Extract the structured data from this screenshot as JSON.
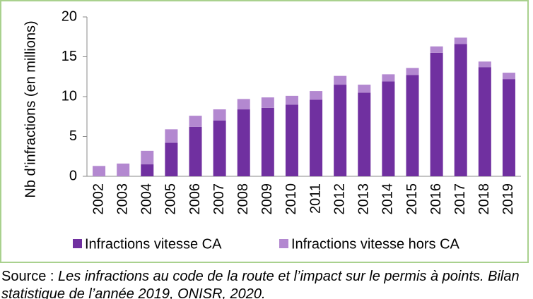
{
  "chart_data": {
    "type": "stacked_bar",
    "y_axis_label": "Nb d’infractions (en millions)",
    "categories": [
      "2002",
      "2003",
      "2004",
      "2005",
      "2006",
      "2007",
      "2008",
      "2009",
      "2010",
      "2011",
      "2012",
      "2013",
      "2014",
      "2015",
      "2016",
      "2017",
      "2018",
      "2019"
    ],
    "series": [
      {
        "name": "Infractions vitesse CA",
        "color": "#7030a0",
        "values": [
          0,
          0,
          1.5,
          4.2,
          6.2,
          7.0,
          8.4,
          8.6,
          9.0,
          9.6,
          11.5,
          10.5,
          11.9,
          12.7,
          15.5,
          16.6,
          13.7,
          12.2
        ]
      },
      {
        "name": "Infractions vitesse hors CA",
        "color": "#b388d0",
        "values": [
          1.3,
          1.6,
          1.7,
          1.7,
          1.4,
          1.4,
          1.3,
          1.3,
          1.1,
          1.1,
          1.1,
          1.0,
          0.9,
          0.9,
          0.8,
          0.8,
          0.7,
          0.8
        ]
      }
    ],
    "ylim": [
      0,
      20
    ],
    "yticks": [
      0,
      5,
      10,
      15,
      20
    ],
    "legend": "bottom"
  },
  "source": {
    "prefix": "Source :",
    "text": "Les infractions au code de la route et l’impact sur le permis à points. Bilan statistique de l’année 2019, ONISR, 2020."
  }
}
